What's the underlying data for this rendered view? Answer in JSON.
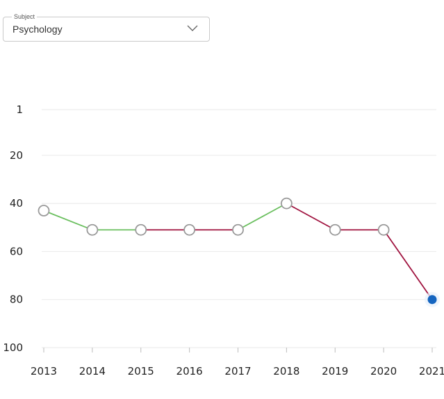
{
  "subject_select": {
    "label": "Subject",
    "value": "Psychology",
    "icon": "chevron-down-icon"
  },
  "chart_data": {
    "type": "line",
    "x": [
      "2013",
      "2014",
      "2015",
      "2016",
      "2017",
      "2018",
      "2019",
      "2020",
      "2021"
    ],
    "y": [
      43,
      51,
      51,
      51,
      51,
      40,
      51,
      51,
      80
    ],
    "ylim": [
      1,
      100
    ],
    "y_inverted": true,
    "yticks": [
      1,
      20,
      40,
      60,
      80,
      100
    ],
    "grid": true,
    "colors": {
      "improving": "#6abf5e",
      "declining": "#a0133f",
      "marker_fill": "#ffffff",
      "marker_stroke": "#9a9a9a",
      "current_marker": "#1565c0",
      "grid": "#ececec"
    }
  }
}
